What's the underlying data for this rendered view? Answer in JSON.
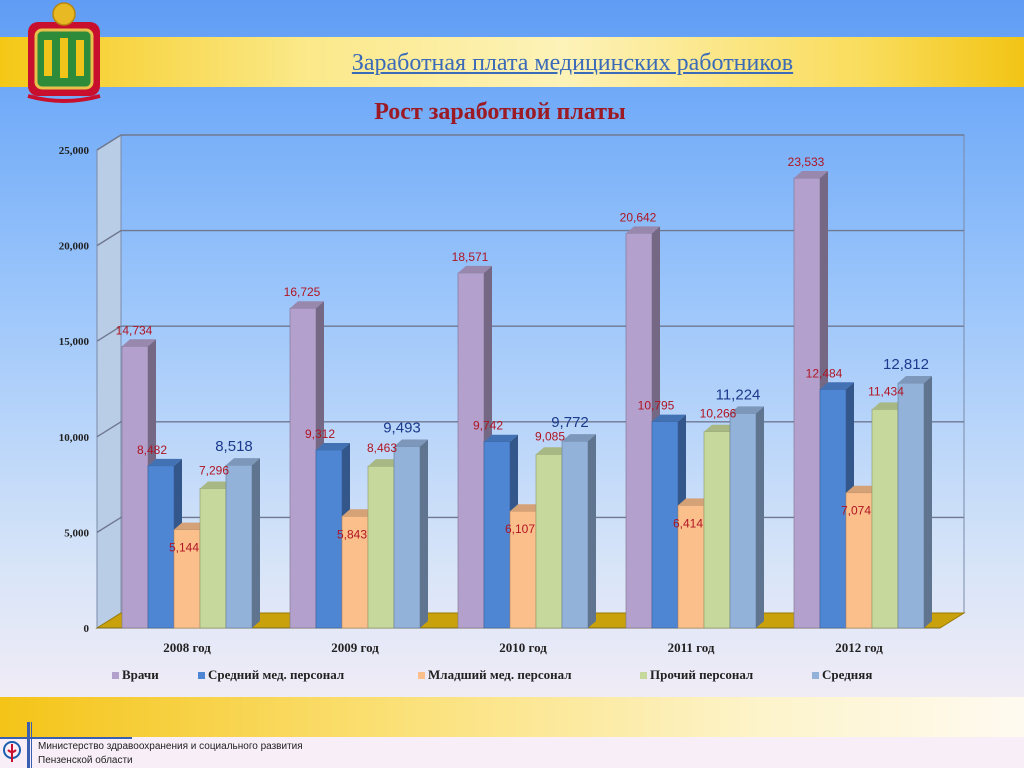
{
  "header": {
    "page_title": "Заработная плата медицинских работников"
  },
  "footer": {
    "line1": "Министерство здравоохранения и социального развития",
    "line2": "Пензенской области"
  },
  "colors": {
    "doctors": "#b3a0cc",
    "mid": "#4f86d4",
    "junior": "#fbbf8c",
    "other": "#c6d89b",
    "average": "#92b2da"
  },
  "chart_data": {
    "type": "bar",
    "title": "Рост заработной платы",
    "categories": [
      "2008 год",
      "2009 год",
      "2010 год",
      "2011 год",
      "2012 год"
    ],
    "ylim": [
      0,
      25000
    ],
    "yticks": [
      "0",
      "5,000",
      "10,000",
      "15,000",
      "20,000",
      "25,000"
    ],
    "ytick_values": [
      0,
      5000,
      10000,
      15000,
      20000,
      25000
    ],
    "grid": true,
    "legend": "bottom",
    "series": [
      {
        "name": "Врачи",
        "values": [
          14734,
          16725,
          18571,
          20642,
          23533
        ],
        "labels": [
          "14,734",
          "16,725",
          "18,571",
          "20,642",
          "23,533"
        ]
      },
      {
        "name": "Средний мед. персонал",
        "values": [
          8482,
          9312,
          9742,
          10795,
          12484
        ],
        "labels": [
          "8,482",
          "9,312",
          "9,742",
          "10,795",
          "12,484"
        ]
      },
      {
        "name": "Младший мед. персонал",
        "values": [
          5144,
          5843,
          6107,
          6414,
          7074
        ],
        "labels": [
          "5,144",
          "5,843",
          "6,107",
          "6,414",
          "7,074"
        ]
      },
      {
        "name": "Прочий персонал",
        "values": [
          7296,
          8463,
          9085,
          10266,
          11434
        ],
        "labels": [
          "7,296",
          "8,463",
          "9,085",
          "10,266",
          "11,434"
        ]
      },
      {
        "name": "Средняя",
        "values": [
          8518,
          9493,
          9772,
          11224,
          12812
        ],
        "labels": [
          "8,518",
          "9,493",
          "9,772",
          "11,224",
          "12,812"
        ]
      }
    ]
  }
}
